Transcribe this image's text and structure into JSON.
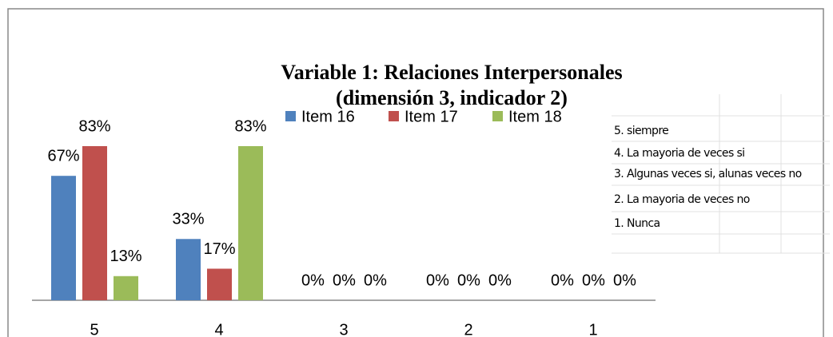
{
  "chart_data": {
    "type": "bar",
    "title": [
      "Variable 1: Relaciones Interpersonales",
      "(dimensión 3, indicador 2)"
    ],
    "categories": [
      "5",
      "4",
      "3",
      "2",
      "1"
    ],
    "series": [
      {
        "name": "Item 16",
        "color": "#4f81bd",
        "values": [
          67,
          33,
          0,
          0,
          0
        ],
        "value_labels": [
          "67%",
          "33%",
          "0%",
          "0%",
          "0%"
        ]
      },
      {
        "name": "Item 17",
        "color": "#c0504d",
        "values": [
          83,
          17,
          0,
          0,
          0
        ],
        "value_labels": [
          "83%",
          "17%",
          "0%",
          "0%",
          "0%"
        ]
      },
      {
        "name": "Item 18",
        "color": "#9bbb59",
        "values": [
          13,
          83,
          0,
          0,
          0
        ],
        "value_labels": [
          "13%",
          "83%",
          "0%",
          "0%",
          "0%"
        ]
      }
    ],
    "legend": "top",
    "annotations": [
      "5. siempre",
      "4. La mayoria de veces si",
      "3. Algunas veces si, alunas veces no",
      "2. La mayoria de veces no",
      "1. Nunca"
    ]
  }
}
